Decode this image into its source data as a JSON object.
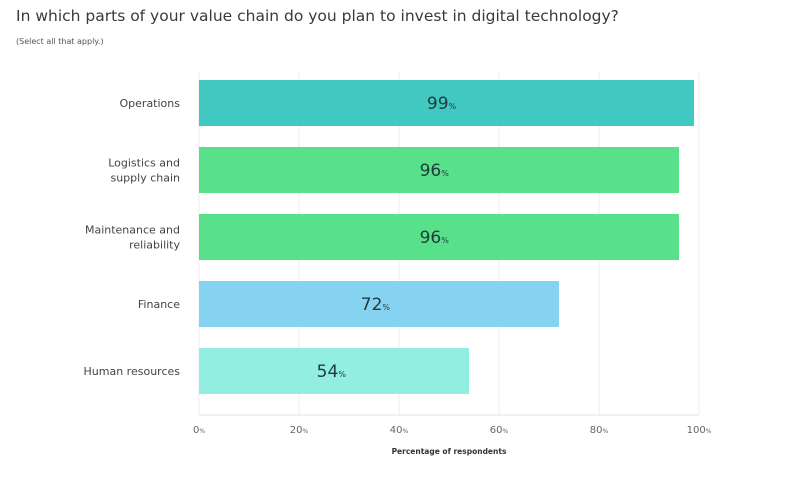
{
  "chart_data": {
    "type": "bar",
    "orientation": "horizontal",
    "title": "In which parts of your value chain do you plan to invest in digital technology?",
    "subtitle": "(Select all that apply.)",
    "categories": [
      [
        "Operations"
      ],
      [
        "Logistics and",
        "supply chain"
      ],
      [
        "Maintenance and",
        "reliability"
      ],
      [
        "Finance"
      ],
      [
        "Human resources"
      ]
    ],
    "values": [
      99,
      96,
      96,
      72,
      54
    ],
    "value_unit": "%",
    "colors": [
      "#41c8c0",
      "#58e08a",
      "#58e08a",
      "#86d3f1",
      "#93eee2"
    ],
    "xlabel": "Percentage of respondents",
    "xlim": [
      0,
      100
    ],
    "xticks": [
      0,
      20,
      40,
      60,
      80,
      100
    ],
    "tick_unit": "%",
    "grid": true
  }
}
